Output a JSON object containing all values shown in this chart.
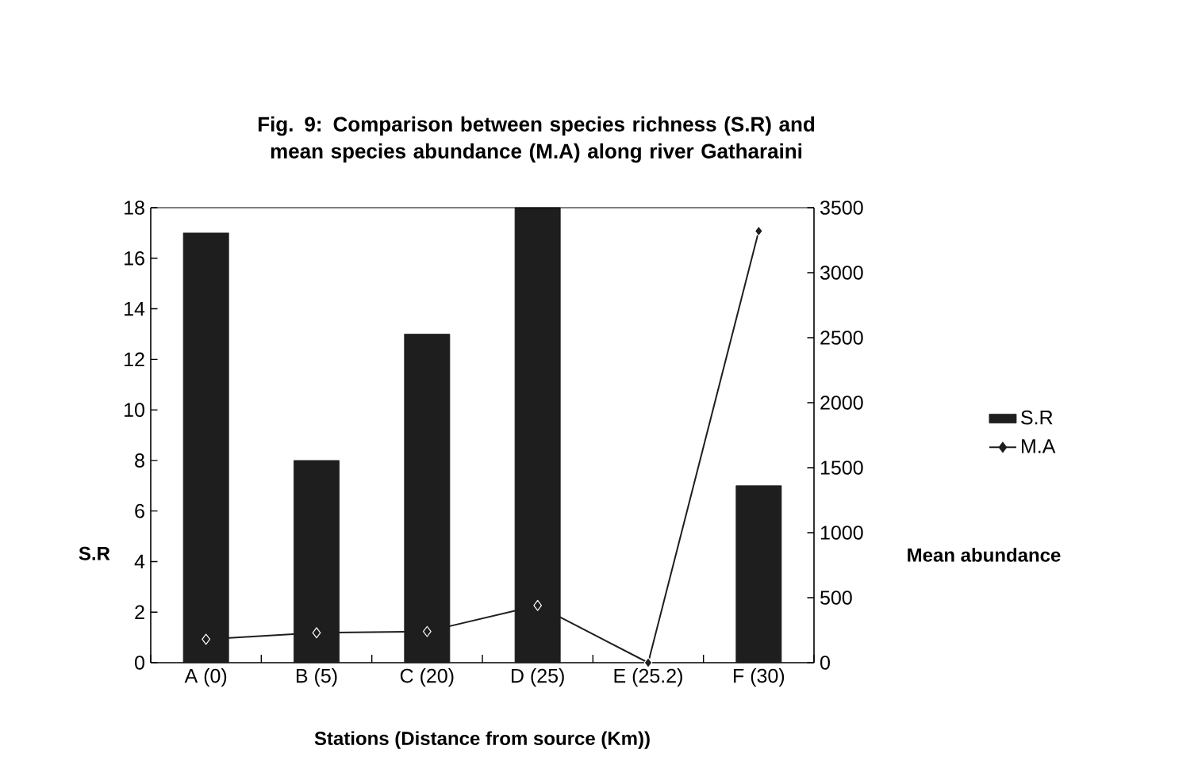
{
  "chart_data": {
    "type": "bar",
    "title": "Fig. 9: Comparison between species richness (S.R) and mean species abundance (M.A) along river Gatharaini",
    "xlabel": "Stations (Distance from source (Km))",
    "ylabel": "S.R",
    "y2label": "Mean abundance",
    "categories": [
      "A (0)",
      "B (5)",
      "C (20)",
      "D (25)",
      "E (25.2)",
      "F (30)"
    ],
    "series": [
      {
        "name": "S.R",
        "color": "#1e1e1e",
        "values": [
          17,
          8,
          13,
          18,
          null,
          7
        ]
      },
      {
        "name": "M.A",
        "type": "line",
        "axis": "y2",
        "color": "#1e1e1e",
        "marker": "diamond",
        "values": [
          180,
          230,
          240,
          440,
          0,
          3320
        ]
      }
    ],
    "ylim": [
      0,
      18
    ],
    "yticks": [
      0,
      2,
      4,
      6,
      8,
      10,
      12,
      14,
      16,
      18
    ],
    "y2lim": [
      0,
      3500
    ],
    "y2ticks": [
      0,
      500,
      1000,
      1500,
      2000,
      2500,
      3000,
      3500
    ],
    "legend": "right",
    "grid": false
  }
}
